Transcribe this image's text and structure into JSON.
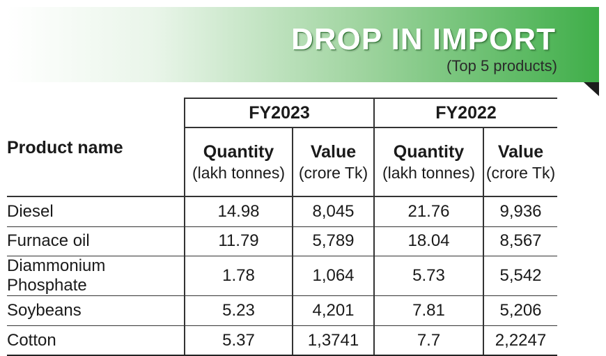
{
  "header": {
    "title": "DROP IN IMPORT",
    "subtitle": "(Top 5 products)"
  },
  "table": {
    "groups": [
      "FY2023",
      "FY2022"
    ],
    "columns": {
      "product": "Product name",
      "quantity": "Quantity",
      "quantity_unit": "(lakh tonnes)",
      "value": "Value",
      "value_unit": "(crore Tk)"
    },
    "rows": [
      {
        "name": "Diesel",
        "fy2023_qty": "14.98",
        "fy2023_val": "8,045",
        "fy2022_qty": "21.76",
        "fy2022_val": "9,936"
      },
      {
        "name": "Furnace oil",
        "fy2023_qty": "11.79",
        "fy2023_val": "5,789",
        "fy2022_qty": "18.04",
        "fy2022_val": "8,567"
      },
      {
        "name": "Diammonium Phosphate",
        "fy2023_qty": "1.78",
        "fy2023_val": "1,064",
        "fy2022_qty": "5.73",
        "fy2022_val": "5,542"
      },
      {
        "name": "Soybeans",
        "fy2023_qty": "5.23",
        "fy2023_val": "4,201",
        "fy2022_qty": "7.81",
        "fy2022_val": "5,206"
      },
      {
        "name": "Cotton",
        "fy2023_qty": "5.37",
        "fy2023_val": "1,3741",
        "fy2022_qty": "7.7",
        "fy2022_val": "2,2247"
      }
    ]
  },
  "colors": {
    "banner_green": "#3fae49",
    "fold": "#1d1d1d"
  }
}
